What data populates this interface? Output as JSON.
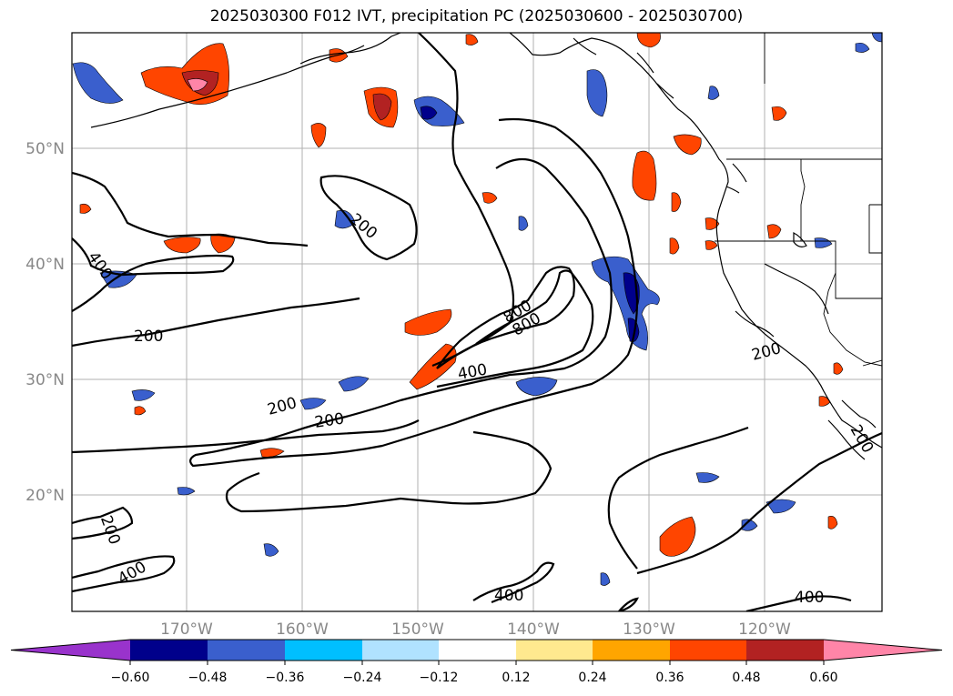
{
  "title": "2025030300 F012 IVT, precipitation PC (2025030600 - 2025030700)",
  "map": {
    "lat_ticks": [
      "50°N",
      "40°N",
      "30°N",
      "20°N"
    ],
    "lon_ticks": [
      "170°W",
      "160°W",
      "150°W",
      "140°W",
      "130°W",
      "120°W"
    ],
    "ivt_contour_labels": [
      "400",
      "200",
      "200",
      "200",
      "200",
      "400",
      "800",
      "800",
      "200",
      "200",
      "400",
      "400",
      "400",
      "200"
    ]
  },
  "colorbar": {
    "ticks": [
      "−0.60",
      "−0.48",
      "−0.36",
      "−0.24",
      "−0.12",
      "0.12",
      "0.24",
      "0.36",
      "0.48",
      "0.60"
    ],
    "colors": [
      "#9933cc",
      "#00008b",
      "#3a5fcd",
      "#00bfff",
      "#b0e2ff",
      "#ffffff",
      "#ffe98f",
      "#ffa500",
      "#ff4500",
      "#b22222",
      "#ff85a8"
    ]
  }
}
